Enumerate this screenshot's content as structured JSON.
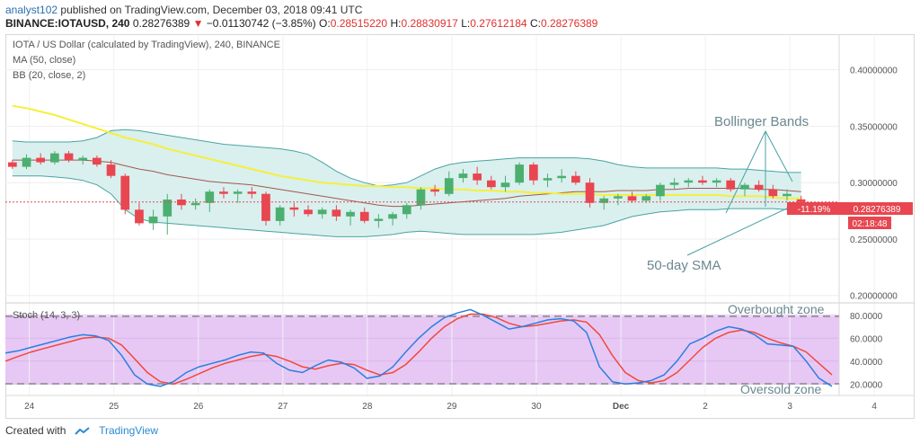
{
  "header": {
    "author": "analyst102",
    "published_text": "published on TradingView.com, December 03, 2018 09:41 UTC",
    "symbol": "BINANCE:IOTAUSD, 240",
    "last": "0.28276389",
    "change_arrow": "▼",
    "change": "−0.01130742 (−3.85%)",
    "o_label": "O:",
    "o": "0.28515220",
    "h_label": "H:",
    "h": "0.28830917",
    "l_label": "L:",
    "l": "0.27612184",
    "c_label": "C:",
    "c": "0.28276389"
  },
  "legend": {
    "title": "IOTA / US Dollar (calculated by TradingView), 240, BINANCE",
    "ma": "MA (50, close)",
    "bb": "BB (20, close, 2)",
    "stoch": "Stoch (14, 3, 3)"
  },
  "price_badge": {
    "pct": "-11.19%",
    "price": "0.28276389",
    "countdown": "02:18:48"
  },
  "annotations": {
    "bollinger": "Bollinger Bands",
    "sma": "50-day SMA",
    "overbought": "Overbought zone",
    "oversold": "Oversold zone"
  },
  "footer": {
    "created_with": "Created with",
    "brand": "TradingView"
  },
  "colors": {
    "up": "#4caf6f",
    "down": "#e84650",
    "ma": "#f5f03a",
    "bb_mid": "#a5574d",
    "bb_band": "#4aa3a3",
    "bb_fill": "#d9f0ef",
    "stoch_k": "#2a7fe0",
    "stoch_d": "#f04a3a",
    "stoch_fill": "#e7c8f5",
    "price_line": "#e84650"
  },
  "chart_data": [
    {
      "type": "candlestick",
      "x_ticks": [
        "24",
        "25",
        "26",
        "27",
        "28",
        "29",
        "30",
        "Dec",
        "2",
        "3",
        "4"
      ],
      "y_ticks": [
        "0.40000000",
        "0.35000000",
        "0.30000000",
        "0.25000000",
        "0.20000000"
      ],
      "ylim": [
        0.195,
        0.43
      ],
      "candles": [
        [
          0.318,
          0.32,
          0.312,
          0.314
        ],
        [
          0.314,
          0.325,
          0.312,
          0.322
        ],
        [
          0.322,
          0.326,
          0.316,
          0.318
        ],
        [
          0.318,
          0.328,
          0.316,
          0.326
        ],
        [
          0.326,
          0.328,
          0.318,
          0.32
        ],
        [
          0.32,
          0.324,
          0.316,
          0.322
        ],
        [
          0.322,
          0.324,
          0.314,
          0.316
        ],
        [
          0.316,
          0.32,
          0.304,
          0.306
        ],
        [
          0.306,
          0.308,
          0.272,
          0.276
        ],
        [
          0.276,
          0.282,
          0.262,
          0.264
        ],
        [
          0.264,
          0.276,
          0.258,
          0.27
        ],
        [
          0.27,
          0.29,
          0.254,
          0.285
        ],
        [
          0.285,
          0.29,
          0.276,
          0.28
        ],
        [
          0.28,
          0.286,
          0.276,
          0.282
        ],
        [
          0.282,
          0.294,
          0.274,
          0.292
        ],
        [
          0.292,
          0.296,
          0.286,
          0.29
        ],
        [
          0.29,
          0.294,
          0.282,
          0.292
        ],
        [
          0.292,
          0.296,
          0.286,
          0.29
        ],
        [
          0.29,
          0.292,
          0.262,
          0.266
        ],
        [
          0.266,
          0.28,
          0.262,
          0.278
        ],
        [
          0.278,
          0.282,
          0.27,
          0.276
        ],
        [
          0.276,
          0.28,
          0.27,
          0.272
        ],
        [
          0.272,
          0.278,
          0.268,
          0.276
        ],
        [
          0.276,
          0.28,
          0.266,
          0.27
        ],
        [
          0.27,
          0.276,
          0.262,
          0.274
        ],
        [
          0.274,
          0.278,
          0.264,
          0.266
        ],
        [
          0.266,
          0.272,
          0.26,
          0.268
        ],
        [
          0.268,
          0.274,
          0.262,
          0.272
        ],
        [
          0.272,
          0.282,
          0.268,
          0.28
        ],
        [
          0.28,
          0.296,
          0.276,
          0.294
        ],
        [
          0.294,
          0.298,
          0.288,
          0.292
        ],
        [
          0.29,
          0.31,
          0.288,
          0.304
        ],
        [
          0.304,
          0.312,
          0.3,
          0.308
        ],
        [
          0.308,
          0.314,
          0.298,
          0.302
        ],
        [
          0.302,
          0.306,
          0.294,
          0.296
        ],
        [
          0.296,
          0.306,
          0.292,
          0.3
        ],
        [
          0.3,
          0.318,
          0.298,
          0.316
        ],
        [
          0.316,
          0.318,
          0.298,
          0.302
        ],
        [
          0.302,
          0.308,
          0.296,
          0.304
        ],
        [
          0.304,
          0.312,
          0.3,
          0.306
        ],
        [
          0.306,
          0.31,
          0.298,
          0.3
        ],
        [
          0.3,
          0.304,
          0.278,
          0.282
        ],
        [
          0.282,
          0.288,
          0.276,
          0.286
        ],
        [
          0.286,
          0.29,
          0.28,
          0.288
        ],
        [
          0.288,
          0.292,
          0.282,
          0.284
        ],
        [
          0.284,
          0.29,
          0.282,
          0.288
        ],
        [
          0.288,
          0.3,
          0.284,
          0.298
        ],
        [
          0.298,
          0.304,
          0.294,
          0.3
        ],
        [
          0.3,
          0.304,
          0.296,
          0.302
        ],
        [
          0.302,
          0.306,
          0.298,
          0.3
        ],
        [
          0.3,
          0.304,
          0.296,
          0.302
        ],
        [
          0.302,
          0.304,
          0.292,
          0.294
        ],
        [
          0.294,
          0.3,
          0.288,
          0.298
        ],
        [
          0.298,
          0.302,
          0.292,
          0.294
        ],
        [
          0.294,
          0.298,
          0.286,
          0.288
        ],
        [
          0.288,
          0.294,
          0.284,
          0.29
        ],
        [
          0.2852,
          0.2883,
          0.2761,
          0.2828
        ]
      ],
      "ma50": [
        0.368,
        0.366,
        0.363,
        0.36,
        0.356,
        0.352,
        0.348,
        0.344,
        0.34,
        0.337,
        0.334,
        0.33,
        0.327,
        0.324,
        0.321,
        0.318,
        0.315,
        0.312,
        0.309,
        0.306,
        0.304,
        0.302,
        0.3,
        0.299,
        0.298,
        0.297,
        0.297,
        0.296,
        0.296,
        0.295,
        0.295,
        0.294,
        0.294,
        0.293,
        0.293,
        0.292,
        0.292,
        0.291,
        0.291,
        0.29,
        0.29,
        0.29,
        0.289,
        0.289,
        0.289,
        0.289,
        0.289,
        0.289,
        0.289,
        0.289,
        0.289,
        0.288,
        0.288,
        0.288,
        0.287,
        0.286,
        0.286
      ],
      "bb_mid": [
        0.32,
        0.32,
        0.32,
        0.32,
        0.32,
        0.32,
        0.319,
        0.318,
        0.315,
        0.312,
        0.31,
        0.307,
        0.305,
        0.303,
        0.301,
        0.3,
        0.299,
        0.298,
        0.296,
        0.294,
        0.292,
        0.29,
        0.288,
        0.286,
        0.284,
        0.282,
        0.28,
        0.279,
        0.279,
        0.28,
        0.281,
        0.282,
        0.283,
        0.284,
        0.285,
        0.286,
        0.288,
        0.289,
        0.29,
        0.291,
        0.292,
        0.292,
        0.292,
        0.293,
        0.293,
        0.293,
        0.294,
        0.294,
        0.295,
        0.295,
        0.295,
        0.295,
        0.295,
        0.294,
        0.294,
        0.293,
        0.292
      ],
      "bb_upper": [
        0.337,
        0.336,
        0.336,
        0.336,
        0.336,
        0.337,
        0.34,
        0.346,
        0.347,
        0.346,
        0.344,
        0.342,
        0.34,
        0.338,
        0.336,
        0.334,
        0.333,
        0.332,
        0.331,
        0.33,
        0.328,
        0.325,
        0.318,
        0.31,
        0.304,
        0.3,
        0.297,
        0.298,
        0.3,
        0.306,
        0.312,
        0.316,
        0.318,
        0.319,
        0.32,
        0.321,
        0.322,
        0.322,
        0.322,
        0.322,
        0.322,
        0.321,
        0.319,
        0.316,
        0.314,
        0.313,
        0.313,
        0.313,
        0.313,
        0.313,
        0.313,
        0.312,
        0.312,
        0.311,
        0.31,
        0.309,
        0.309
      ],
      "bb_lower": [
        0.306,
        0.306,
        0.306,
        0.305,
        0.304,
        0.302,
        0.298,
        0.29,
        0.276,
        0.268,
        0.265,
        0.264,
        0.263,
        0.262,
        0.261,
        0.26,
        0.259,
        0.258,
        0.257,
        0.256,
        0.255,
        0.254,
        0.253,
        0.252,
        0.252,
        0.252,
        0.253,
        0.254,
        0.256,
        0.257,
        0.256,
        0.255,
        0.254,
        0.254,
        0.254,
        0.254,
        0.254,
        0.254,
        0.255,
        0.256,
        0.258,
        0.26,
        0.262,
        0.266,
        0.27,
        0.272,
        0.274,
        0.275,
        0.276,
        0.276,
        0.276,
        0.277,
        0.277,
        0.277,
        0.277,
        0.276,
        0.276
      ]
    },
    {
      "type": "line",
      "title": "Stoch (14, 3, 3)",
      "y_ticks": [
        "80.0000",
        "60.0000",
        "40.0000",
        "20.0000"
      ],
      "ylim": [
        10,
        90
      ],
      "bands": [
        20,
        80
      ],
      "series": [
        {
          "values": [
            47,
            49,
            52,
            55,
            58,
            61,
            63,
            62,
            58,
            45,
            28,
            20,
            18,
            22,
            30,
            35,
            38,
            41,
            45,
            48,
            47,
            38,
            32,
            30,
            36,
            41,
            39,
            34,
            25,
            27,
            35,
            48,
            60,
            70,
            78,
            82,
            85,
            80,
            74,
            68,
            70,
            73,
            76,
            77,
            75,
            65,
            35,
            22,
            20,
            21,
            23,
            28,
            40,
            55,
            60,
            66,
            70,
            68,
            63,
            55,
            54,
            53,
            40,
            25,
            18
          ]
        },
        {
          "values": [
            40,
            44,
            48,
            51,
            54,
            57,
            60,
            61,
            60,
            54,
            42,
            30,
            22,
            20,
            24,
            29,
            34,
            38,
            41,
            44,
            46,
            44,
            40,
            35,
            33,
            36,
            38,
            37,
            32,
            28,
            30,
            37,
            48,
            60,
            70,
            77,
            81,
            81,
            78,
            73,
            70,
            71,
            73,
            75,
            76,
            74,
            63,
            45,
            30,
            23,
            21,
            23,
            30,
            41,
            52,
            60,
            65,
            67,
            65,
            60,
            56,
            53,
            48,
            38,
            28
          ]
        }
      ]
    }
  ]
}
